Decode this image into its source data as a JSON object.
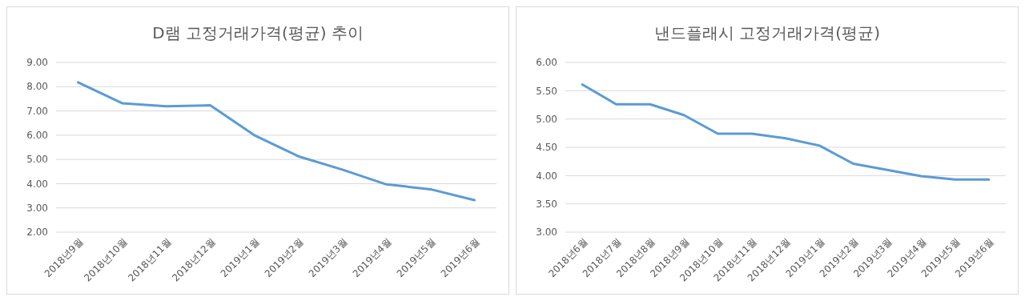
{
  "chart_data": [
    {
      "type": "line",
      "title": "D램 고정거래가격(평균) 추이",
      "categories": [
        "2018년9월",
        "2018년10월",
        "2018년11월",
        "2018년12월",
        "2019년1월",
        "2019년2월",
        "2019년3월",
        "2019년4월",
        "2019년5월",
        "2019년6월"
      ],
      "series": [
        {
          "color": "#5b9bd5",
          "values": [
            8.18,
            7.32,
            7.19,
            7.23,
            6.0,
            5.13,
            4.58,
            3.97,
            3.77,
            3.32
          ]
        }
      ],
      "ylim": [
        2,
        9
      ],
      "yticks": [
        {
          "value": 2,
          "label": "2.00"
        },
        {
          "value": 3,
          "label": "3.00"
        },
        {
          "value": 4,
          "label": "4.00"
        },
        {
          "value": 5,
          "label": "5.00"
        },
        {
          "value": 6,
          "label": "6.00"
        },
        {
          "value": 7,
          "label": "7.00"
        },
        {
          "value": 8,
          "label": "8.00"
        },
        {
          "value": 9,
          "label": "9.00"
        }
      ],
      "grid": "y"
    },
    {
      "type": "line",
      "title": "낸드플래시 고정거래가격(평균)",
      "categories": [
        "2018년6월",
        "2018년7월",
        "2018년8월",
        "2018년9월",
        "2018년10월",
        "2018년11월",
        "2018년12월",
        "2019년1월",
        "2019년2월",
        "2019년3월",
        "2019년4월",
        "2019년5월",
        "2019년6월"
      ],
      "series": [
        {
          "color": "#5b9bd5",
          "values": [
            5.61,
            5.26,
            5.26,
            5.07,
            4.74,
            4.74,
            4.66,
            4.53,
            4.21,
            4.1,
            3.99,
            3.93,
            3.93
          ]
        }
      ],
      "ylim": [
        3,
        6
      ],
      "yticks": [
        {
          "value": 3,
          "label": "3.00"
        },
        {
          "value": 3.5,
          "label": "3.50"
        },
        {
          "value": 4,
          "label": "4.00"
        },
        {
          "value": 4.5,
          "label": "4.50"
        },
        {
          "value": 5,
          "label": "5.00"
        },
        {
          "value": 5.5,
          "label": "5.50"
        },
        {
          "value": 6,
          "label": "6.00"
        }
      ],
      "grid": "y"
    }
  ]
}
